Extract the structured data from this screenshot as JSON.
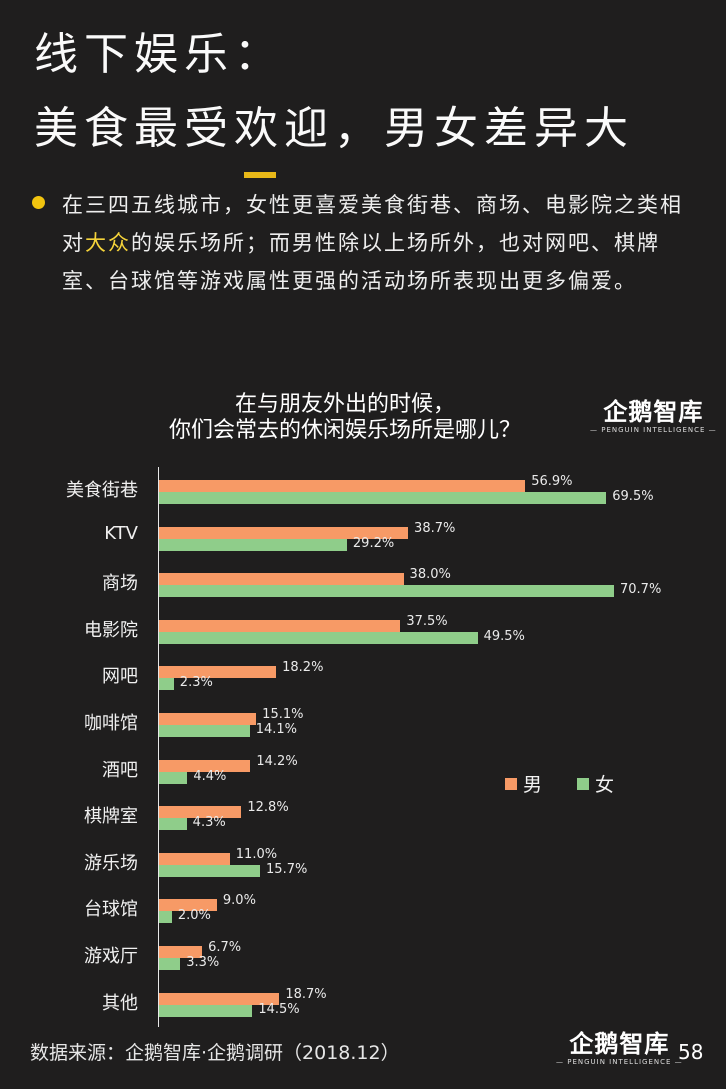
{
  "header": {
    "title_line1": "线下娱乐：",
    "title_line2": "美食最受欢迎，男女差异大"
  },
  "description": {
    "part1": "在三四五线城市，女性更喜爱美食街巷、商场、电影院之类相对",
    "highlight": "大众",
    "part2": "的娱乐场所；而男性除以上场所外，也对网吧、棋牌室、台球馆等游戏属性更强的活动场所表现出更多偏爱。",
    "highlight_color": "#f5d33a",
    "bullet_color": "#f1c40f"
  },
  "logo": {
    "cn": "企鹅智库",
    "en": "— PENGUIN INTELLIGENCE —"
  },
  "chart_data": {
    "type": "bar",
    "orientation": "horizontal",
    "title": "在与朋友外出的时候，你们会常去的休闲娱乐场所是哪儿？",
    "title_line1": "在与朋友外出的时候，",
    "title_line2": "你们会常去的休闲娱乐场所是哪儿？",
    "categories": [
      "美食街巷",
      "KTV",
      "商场",
      "电影院",
      "网吧",
      "咖啡馆",
      "酒吧",
      "棋牌室",
      "游乐场",
      "台球馆",
      "游戏厅",
      "其他"
    ],
    "series": [
      {
        "name": "男",
        "color": "#f79a66",
        "values": [
          56.9,
          38.7,
          38.0,
          37.5,
          18.2,
          15.1,
          14.2,
          12.8,
          11.0,
          9.0,
          6.7,
          18.7
        ],
        "labels": [
          "56.9%",
          "38.7%",
          "38.0%",
          "37.5%",
          "18.2%",
          "15.1%",
          "14.2%",
          "12.8%",
          "11.0%",
          "9.0%",
          "6.7%",
          "18.7%"
        ]
      },
      {
        "name": "女",
        "color": "#8fcd8a",
        "values": [
          69.5,
          29.2,
          70.7,
          49.5,
          2.3,
          14.1,
          4.4,
          4.3,
          15.7,
          2.0,
          3.3,
          14.5
        ],
        "labels": [
          "69.5%",
          "29.2%",
          "70.7%",
          "49.5%",
          "2.3%",
          "14.1%",
          "4.4%",
          "4.3%",
          "15.7%",
          "2.0%",
          "3.3%",
          "14.5%"
        ]
      }
    ],
    "xlabel": "",
    "ylabel": "",
    "xlim": [
      0,
      75
    ],
    "grid": false,
    "legend_position": "right-middle"
  },
  "footer": {
    "source": "数据来源：企鹅智库·企鹅调研（2018.12）",
    "page_number": "58"
  }
}
